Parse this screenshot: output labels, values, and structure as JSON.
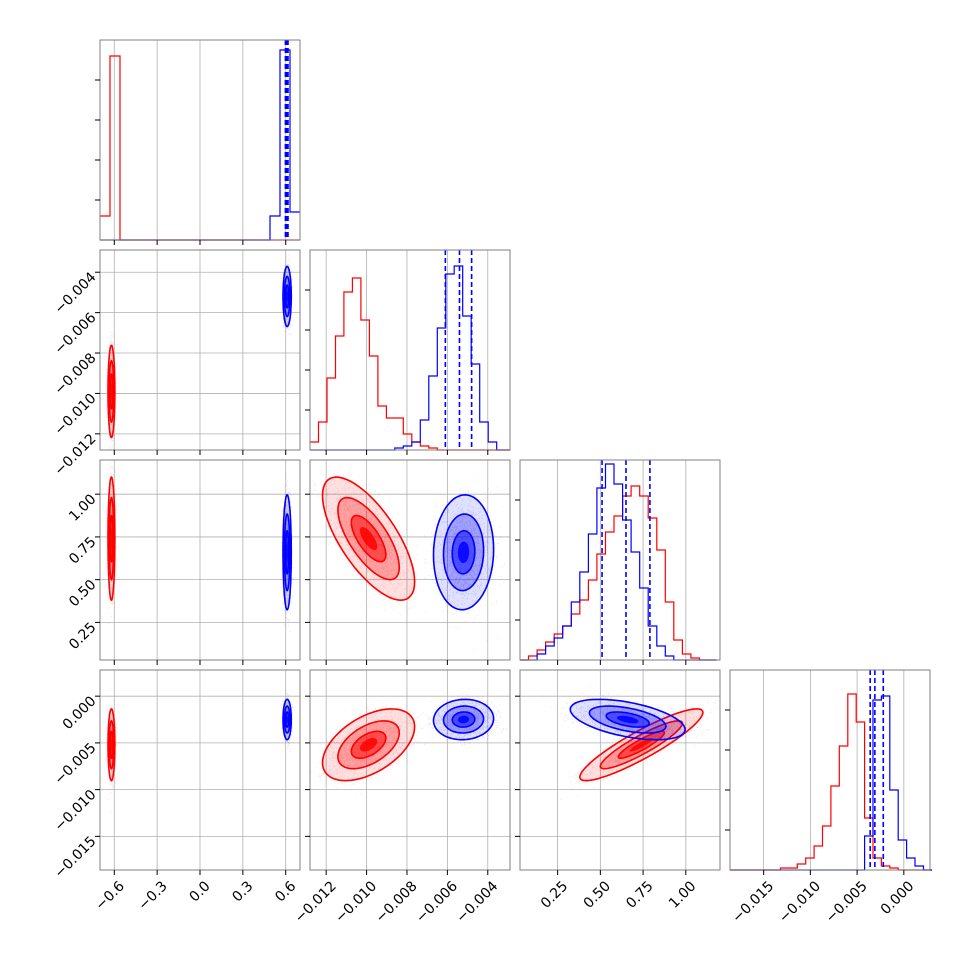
{
  "chart_data": {
    "type": "scatter",
    "title": "",
    "variant": "corner-plot",
    "n_params": 4,
    "grid": true,
    "colors": {
      "red": "#ff0000",
      "blue": "#0000ff",
      "frame": "#808080"
    },
    "params": [
      {
        "range": [
          -0.7,
          0.7
        ],
        "ticks": [
          -0.6,
          -0.3,
          0.0,
          0.3,
          0.6
        ],
        "tick_labels": [
          "−0.6",
          "−0.3",
          "0.0",
          "0.3",
          "0.6"
        ]
      },
      {
        "range": [
          -0.0128,
          -0.0029
        ],
        "ticks": [
          -0.012,
          -0.01,
          -0.008,
          -0.006,
          -0.004
        ],
        "tick_labels": [
          "−0.012",
          "−0.010",
          "−0.008",
          "−0.006",
          "−0.004"
        ]
      },
      {
        "range": [
          0.03,
          1.2
        ],
        "ticks": [
          0.25,
          0.5,
          0.75,
          1.0
        ],
        "tick_labels": [
          "0.25",
          "0.50",
          "0.75",
          "1.00"
        ]
      },
      {
        "range": [
          -0.0186,
          0.0028
        ],
        "ticks": [
          -0.015,
          -0.01,
          -0.005,
          0.0
        ],
        "tick_labels": [
          "−0.015",
          "−0.010",
          "−0.005",
          "0.000"
        ]
      }
    ],
    "series": [
      {
        "color": "red",
        "mean": [
          -0.62,
          -0.0099,
          0.74,
          -0.0052
        ],
        "sd": [
          0.01,
          0.00095,
          0.15,
          0.0016
        ],
        "corr": {
          "1-2": -0.7,
          "1-3": 0.5,
          "2-3": 0.9
        }
      },
      {
        "color": "blue",
        "mean": [
          0.61,
          -0.0052,
          0.66,
          -0.0025
        ],
        "sd": [
          0.012,
          0.00062,
          0.14,
          0.0009
        ],
        "corr": {
          "1-2": 0.05,
          "1-3": 0.05,
          "2-3": -0.5
        }
      }
    ],
    "quantiles": [
      [
        0.598,
        0.607,
        0.616
      ],
      [
        -0.0061,
        -0.0054,
        -0.0048
      ],
      [
        0.51,
        0.65,
        0.79
      ],
      [
        -0.0036,
        -0.0031,
        -0.0022
      ]
    ],
    "histograms": [
      {
        "param": 0,
        "edges": [
          -0.7,
          -0.63,
          -0.56,
          -0.49,
          -0.42,
          -0.35,
          -0.28,
          -0.21,
          -0.14,
          -0.07,
          0.0,
          0.07,
          0.14,
          0.21,
          0.28,
          0.35,
          0.42,
          0.49,
          0.56,
          0.63,
          0.7
        ],
        "red": [
          0.12,
          0.92,
          0,
          0,
          0,
          0,
          0,
          0,
          0,
          0,
          0,
          0,
          0,
          0,
          0,
          0,
          0,
          0,
          0,
          0
        ],
        "blue": [
          0,
          0,
          0,
          0,
          0,
          0,
          0,
          0,
          0,
          0,
          0,
          0,
          0,
          0,
          0,
          0,
          0,
          0.12,
          0.95,
          0.14
        ]
      },
      {
        "param": 1,
        "edges": [
          -0.0128,
          -0.01238,
          -0.01196,
          -0.01154,
          -0.01112,
          -0.0107,
          -0.01028,
          -0.00986,
          -0.00944,
          -0.00902,
          -0.0086,
          -0.00818,
          -0.00776,
          -0.00734,
          -0.00692,
          -0.0065,
          -0.00608,
          -0.00566,
          -0.00524,
          -0.00482,
          -0.0044,
          -0.00398,
          -0.00356,
          -0.00314,
          -0.0029
        ],
        "red": [
          0.04,
          0.14,
          0.36,
          0.57,
          0.79,
          0.86,
          0.65,
          0.47,
          0.22,
          0.16,
          0.16,
          0.08,
          0.04,
          0.02,
          0.01,
          0,
          0,
          0,
          0,
          0,
          0,
          0,
          0,
          0
        ],
        "blue": [
          0,
          0,
          0,
          0,
          0,
          0,
          0,
          0,
          0,
          0,
          0.01,
          0.02,
          0.04,
          0.15,
          0.37,
          0.61,
          0.88,
          0.92,
          0.67,
          0.43,
          0.14,
          0.04,
          0,
          0
        ]
      },
      {
        "param": 2,
        "edges": [
          0.03,
          0.08,
          0.13,
          0.18,
          0.23,
          0.28,
          0.33,
          0.38,
          0.43,
          0.48,
          0.53,
          0.58,
          0.63,
          0.68,
          0.73,
          0.78,
          0.83,
          0.88,
          0.93,
          0.98,
          1.03,
          1.08,
          1.13,
          1.18
        ],
        "red": [
          0,
          0.02,
          0.05,
          0.09,
          0.13,
          0.17,
          0.23,
          0.3,
          0.4,
          0.53,
          0.64,
          0.72,
          0.82,
          0.87,
          0.82,
          0.71,
          0.55,
          0.29,
          0.1,
          0.03,
          0.01,
          0,
          0
        ],
        "blue": [
          0,
          0,
          0.03,
          0.07,
          0.11,
          0.17,
          0.29,
          0.44,
          0.63,
          0.86,
          0.98,
          0.88,
          0.7,
          0.54,
          0.36,
          0.17,
          0.07,
          0.02,
          0,
          0,
          0,
          0,
          0
        ]
      },
      {
        "param": 3,
        "edges": [
          -0.0186,
          -0.0177,
          -0.0168,
          -0.0159,
          -0.015,
          -0.0141,
          -0.0132,
          -0.0123,
          -0.0114,
          -0.0105,
          -0.0096,
          -0.0087,
          -0.0078,
          -0.0069,
          -0.006,
          -0.0051,
          -0.0042,
          -0.0033,
          -0.0024,
          -0.0015,
          -0.0006,
          0.0003,
          0.0012,
          0.0021,
          0.003
        ],
        "red": [
          0,
          0,
          0,
          0,
          0,
          0,
          0.01,
          0.01,
          0.03,
          0.06,
          0.12,
          0.22,
          0.42,
          0.62,
          0.88,
          0.74,
          0.26,
          0.06,
          0.02,
          0.01,
          0,
          0,
          0,
          0
        ],
        "blue": [
          0,
          0,
          0,
          0,
          0,
          0,
          0,
          0,
          0,
          0,
          0,
          0,
          0,
          0,
          0,
          0,
          0.17,
          0.85,
          0.87,
          0.4,
          0.15,
          0.06,
          0.02,
          0
        ]
      }
    ]
  }
}
